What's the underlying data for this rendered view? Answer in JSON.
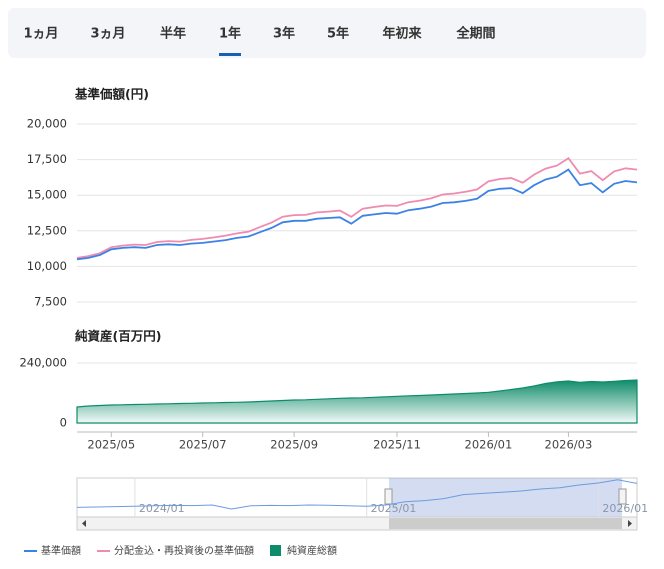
{
  "tabs": {
    "items": [
      "1ヵ月",
      "3ヵ月",
      "半年",
      "1年",
      "3年",
      "5年",
      "年初来",
      "全期間"
    ],
    "active": 3,
    "disabled": [
      4,
      5
    ]
  },
  "chart_data": [
    {
      "type": "line",
      "title": "基準価額(円)",
      "series": [
        {
          "name": "基準価額",
          "color": "#3b82e6",
          "values": [
            10500,
            10600,
            10800,
            11200,
            11300,
            11350,
            11300,
            11500,
            11550,
            11500,
            11600,
            11650,
            11750,
            11850,
            12000,
            12100,
            12400,
            12700,
            13100,
            13200,
            13200,
            13350,
            13400,
            13450,
            13000,
            13550,
            13650,
            13750,
            13700,
            13950,
            14050,
            14200,
            14450,
            14500,
            14600,
            14750,
            15300,
            15450,
            15500,
            15150,
            15700,
            16100,
            16300,
            16800,
            15700,
            15850,
            15200,
            15800,
            16000,
            15900
          ]
        },
        {
          "name": "分配金込・再投資後の基準価額",
          "color": "#f08bb0",
          "values": [
            10600,
            10720,
            10930,
            11350,
            11460,
            11530,
            11500,
            11710,
            11780,
            11740,
            11860,
            11930,
            12040,
            12160,
            12320,
            12440,
            12760,
            13070,
            13490,
            13600,
            13620,
            13790,
            13850,
            13920,
            13480,
            14050,
            14170,
            14280,
            14250,
            14510,
            14620,
            14790,
            15050,
            15120,
            15240,
            15400,
            15970,
            16140,
            16210,
            15880,
            16450,
            16870,
            17080,
            17600,
            16520,
            16690,
            16050,
            16670,
            16890,
            16800
          ]
        }
      ],
      "ylim": [
        7500,
        20000
      ],
      "yticks": [
        {
          "value": 7500,
          "label": "7,500"
        },
        {
          "value": 10000,
          "label": "10,000"
        },
        {
          "value": 12500,
          "label": "12,500"
        },
        {
          "value": 15000,
          "label": "15,000"
        },
        {
          "value": 17500,
          "label": "17,500"
        },
        {
          "value": 20000,
          "label": "20,000"
        }
      ],
      "grid": true
    },
    {
      "type": "area",
      "title": "純資産(百万円)",
      "categories": [
        null,
        null,
        null,
        "2025/05",
        null,
        null,
        null,
        null,
        null,
        null,
        null,
        "2025/07",
        null,
        null,
        null,
        null,
        null,
        null,
        null,
        "2025/09",
        null,
        null,
        null,
        null,
        null,
        null,
        null,
        null,
        "2025/11",
        null,
        null,
        null,
        null,
        null,
        null,
        null,
        "2026/01",
        null,
        null,
        null,
        null,
        null,
        null,
        "2026/03",
        null,
        null,
        null,
        null,
        null,
        null
      ],
      "series": [
        {
          "name": "純資産総額",
          "color": "#0e8c6a",
          "values": [
            64000,
            68000,
            70000,
            72000,
            73000,
            74000,
            75000,
            76000,
            77000,
            78000,
            79000,
            80000,
            81000,
            82000,
            83000,
            84000,
            86000,
            88000,
            90000,
            92000,
            93000,
            95000,
            97000,
            99000,
            100000,
            101000,
            103000,
            105000,
            107000,
            109000,
            110000,
            112000,
            114000,
            116000,
            118000,
            120000,
            123000,
            128000,
            134000,
            140000,
            148000,
            158000,
            165000,
            168000,
            163000,
            166000,
            164000,
            167000,
            170000,
            172000
          ]
        }
      ],
      "ylim": [
        0,
        240000
      ],
      "yticks": [
        0,
        {
          "value": 240000,
          "label": "240,000"
        }
      ],
      "grid": true
    },
    {
      "type": "navigator",
      "categories": [
        null,
        null,
        null,
        "2024/01",
        null,
        null,
        null,
        null,
        null,
        null,
        null,
        null,
        null,
        null,
        null,
        "2025/01",
        null,
        null,
        null,
        null,
        null,
        null,
        null,
        null,
        null,
        null,
        null,
        "2026/01",
        null,
        null
      ],
      "values": [
        9900,
        10000,
        10100,
        10200,
        10300,
        10400,
        10350,
        10500,
        9500,
        10300,
        10400,
        10350,
        10500,
        10450,
        10300,
        10200,
        10500,
        11300,
        11600,
        12100,
        13100,
        13400,
        13700,
        14000,
        14500,
        14800,
        15500,
        16000,
        16800,
        15900
      ],
      "color": "#6d9be0",
      "ylim": [
        8000,
        18000
      ]
    }
  ]
}
